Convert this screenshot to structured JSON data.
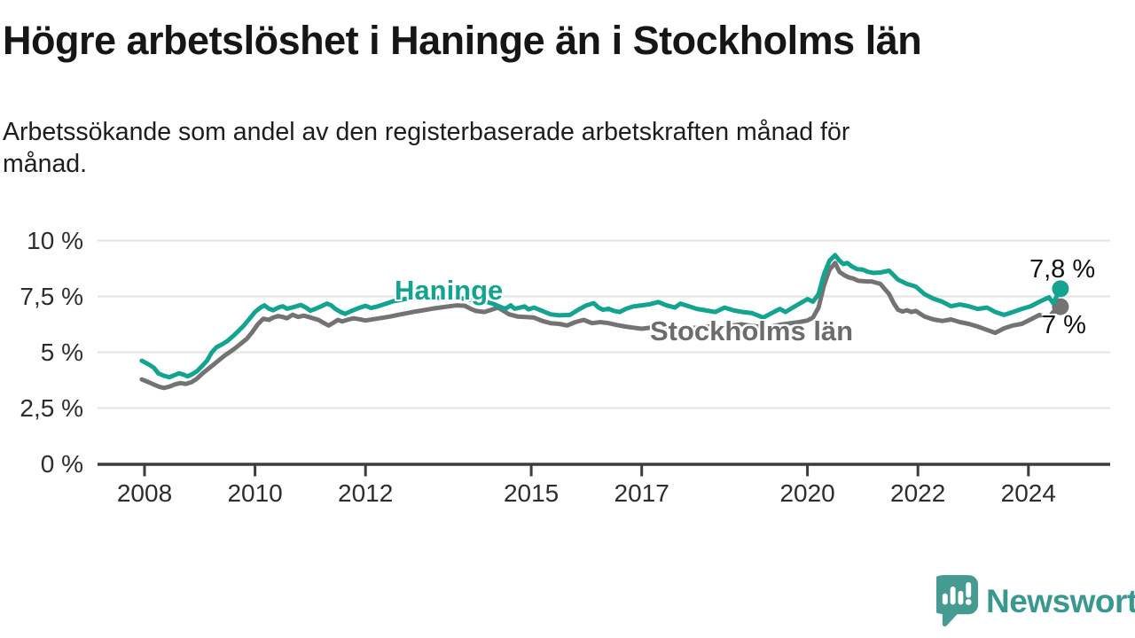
{
  "header": {
    "title": "Högre arbetslöshet i Haninge än i Stockholms län",
    "subtitle_line1": "Arbetssökande som andel av den registerbaserade arbetskraften månad för",
    "subtitle_line2": "månad."
  },
  "chart_data": {
    "type": "line",
    "unit": "%",
    "title": "Högre arbetslöshet i Haninge än i Stockholms län",
    "xlabel": "",
    "ylabel": "",
    "ylim": [
      0,
      10
    ],
    "x_range": [
      2007.95,
      2024.58
    ],
    "grid": true,
    "colors": {
      "grid": "#e3e3e3",
      "axis": "#3c3c3c",
      "text": "#1a1a1a",
      "tick_text": "#2d2d2d"
    },
    "y_ticks": [
      {
        "v": 0,
        "label": "0 %"
      },
      {
        "v": 2.5,
        "label": "2,5 %"
      },
      {
        "v": 5,
        "label": "5 %"
      },
      {
        "v": 7.5,
        "label": "7,5 %"
      },
      {
        "v": 10,
        "label": "10 %"
      }
    ],
    "x_ticks": [
      {
        "v": 2008,
        "label": "2008"
      },
      {
        "v": 2010,
        "label": "2010"
      },
      {
        "v": 2012,
        "label": "2012"
      },
      {
        "v": 2015,
        "label": "2015"
      },
      {
        "v": 2017,
        "label": "2017"
      },
      {
        "v": 2020,
        "label": "2020"
      },
      {
        "v": 2022,
        "label": "2022"
      },
      {
        "v": 2024,
        "label": "2024"
      }
    ],
    "series": [
      {
        "name": "Haninge",
        "slug": "haninge",
        "label": "Haninge",
        "color": "#13a391",
        "end_label": "7,8 %",
        "end_value": 7.8,
        "points": [
          [
            2007.95,
            4.62
          ],
          [
            2008.08,
            4.45
          ],
          [
            2008.17,
            4.3
          ],
          [
            2008.25,
            4.05
          ],
          [
            2008.35,
            3.95
          ],
          [
            2008.45,
            3.88
          ],
          [
            2008.55,
            3.98
          ],
          [
            2008.63,
            4.06
          ],
          [
            2008.7,
            4.0
          ],
          [
            2008.78,
            3.92
          ],
          [
            2008.85,
            4.0
          ],
          [
            2008.95,
            4.15
          ],
          [
            2009.05,
            4.4
          ],
          [
            2009.13,
            4.62
          ],
          [
            2009.22,
            5.0
          ],
          [
            2009.3,
            5.22
          ],
          [
            2009.4,
            5.35
          ],
          [
            2009.5,
            5.5
          ],
          [
            2009.6,
            5.72
          ],
          [
            2009.7,
            5.95
          ],
          [
            2009.8,
            6.2
          ],
          [
            2009.9,
            6.5
          ],
          [
            2010.0,
            6.8
          ],
          [
            2010.1,
            7.0
          ],
          [
            2010.17,
            7.1
          ],
          [
            2010.25,
            6.95
          ],
          [
            2010.33,
            6.88
          ],
          [
            2010.42,
            7.0
          ],
          [
            2010.5,
            7.06
          ],
          [
            2010.58,
            6.95
          ],
          [
            2010.67,
            7.0
          ],
          [
            2010.75,
            7.06
          ],
          [
            2010.83,
            7.12
          ],
          [
            2010.92,
            7.0
          ],
          [
            2011.0,
            6.86
          ],
          [
            2011.1,
            6.95
          ],
          [
            2011.2,
            7.06
          ],
          [
            2011.3,
            7.18
          ],
          [
            2011.38,
            7.1
          ],
          [
            2011.45,
            6.95
          ],
          [
            2011.55,
            6.8
          ],
          [
            2011.63,
            6.72
          ],
          [
            2011.72,
            6.82
          ],
          [
            2011.8,
            6.9
          ],
          [
            2011.9,
            7.0
          ],
          [
            2012.0,
            7.08
          ],
          [
            2012.1,
            6.98
          ],
          [
            2012.2,
            7.04
          ],
          [
            2012.3,
            7.12
          ],
          [
            2012.4,
            7.2
          ],
          [
            2012.5,
            7.28
          ],
          [
            2012.65,
            7.35
          ],
          [
            2012.8,
            7.42
          ],
          [
            2012.95,
            7.45
          ],
          [
            2013.1,
            7.5
          ],
          [
            2013.25,
            7.45
          ],
          [
            2013.4,
            7.42
          ],
          [
            2013.55,
            7.46
          ],
          [
            2013.7,
            7.42
          ],
          [
            2013.85,
            7.38
          ],
          [
            2014.0,
            7.32
          ],
          [
            2014.15,
            7.28
          ],
          [
            2014.3,
            7.18
          ],
          [
            2014.45,
            7.02
          ],
          [
            2014.53,
            6.94
          ],
          [
            2014.63,
            7.1
          ],
          [
            2014.7,
            6.95
          ],
          [
            2014.8,
            7.0
          ],
          [
            2014.88,
            7.05
          ],
          [
            2014.95,
            6.92
          ],
          [
            2015.05,
            7.0
          ],
          [
            2015.2,
            6.85
          ],
          [
            2015.35,
            6.7
          ],
          [
            2015.5,
            6.65
          ],
          [
            2015.7,
            6.67
          ],
          [
            2015.85,
            6.9
          ],
          [
            2016.0,
            7.1
          ],
          [
            2016.13,
            7.2
          ],
          [
            2016.22,
            7.0
          ],
          [
            2016.3,
            6.9
          ],
          [
            2016.4,
            6.95
          ],
          [
            2016.5,
            6.85
          ],
          [
            2016.6,
            6.8
          ],
          [
            2016.72,
            6.95
          ],
          [
            2016.85,
            7.05
          ],
          [
            2017.0,
            7.1
          ],
          [
            2017.15,
            7.15
          ],
          [
            2017.3,
            7.25
          ],
          [
            2017.45,
            7.1
          ],
          [
            2017.6,
            7.0
          ],
          [
            2017.7,
            7.18
          ],
          [
            2017.85,
            7.06
          ],
          [
            2018.0,
            6.94
          ],
          [
            2018.17,
            6.87
          ],
          [
            2018.33,
            6.8
          ],
          [
            2018.5,
            7.0
          ],
          [
            2018.67,
            6.87
          ],
          [
            2018.83,
            6.8
          ],
          [
            2019.0,
            6.75
          ],
          [
            2019.2,
            6.55
          ],
          [
            2019.35,
            6.75
          ],
          [
            2019.5,
            6.94
          ],
          [
            2019.6,
            6.8
          ],
          [
            2019.83,
            7.14
          ],
          [
            2020.0,
            7.38
          ],
          [
            2020.1,
            7.26
          ],
          [
            2020.2,
            7.6
          ],
          [
            2020.3,
            8.5
          ],
          [
            2020.4,
            9.1
          ],
          [
            2020.5,
            9.35
          ],
          [
            2020.58,
            9.1
          ],
          [
            2020.65,
            8.95
          ],
          [
            2020.72,
            9.0
          ],
          [
            2020.8,
            8.85
          ],
          [
            2020.9,
            8.72
          ],
          [
            2021.0,
            8.7
          ],
          [
            2021.1,
            8.6
          ],
          [
            2021.2,
            8.55
          ],
          [
            2021.32,
            8.57
          ],
          [
            2021.48,
            8.65
          ],
          [
            2021.64,
            8.25
          ],
          [
            2021.8,
            8.06
          ],
          [
            2021.96,
            7.94
          ],
          [
            2022.12,
            7.6
          ],
          [
            2022.28,
            7.4
          ],
          [
            2022.44,
            7.26
          ],
          [
            2022.6,
            7.06
          ],
          [
            2022.76,
            7.14
          ],
          [
            2022.92,
            7.06
          ],
          [
            2023.08,
            6.94
          ],
          [
            2023.25,
            7.0
          ],
          [
            2023.4,
            6.8
          ],
          [
            2023.56,
            6.67
          ],
          [
            2023.72,
            6.8
          ],
          [
            2023.88,
            6.94
          ],
          [
            2024.04,
            7.06
          ],
          [
            2024.2,
            7.26
          ],
          [
            2024.37,
            7.46
          ],
          [
            2024.45,
            7.2
          ],
          [
            2024.58,
            7.84
          ]
        ]
      },
      {
        "name": "Stockholms län",
        "slug": "stockholms-lan",
        "label": "Stockholms län",
        "color": "#737373",
        "label_color": "#6c6c6c",
        "end_label": "7 %",
        "end_value": 7.0,
        "points": [
          [
            2007.95,
            3.78
          ],
          [
            2008.08,
            3.65
          ],
          [
            2008.17,
            3.55
          ],
          [
            2008.27,
            3.45
          ],
          [
            2008.35,
            3.4
          ],
          [
            2008.45,
            3.46
          ],
          [
            2008.55,
            3.56
          ],
          [
            2008.65,
            3.62
          ],
          [
            2008.75,
            3.58
          ],
          [
            2008.85,
            3.66
          ],
          [
            2008.95,
            3.82
          ],
          [
            2009.05,
            4.05
          ],
          [
            2009.15,
            4.25
          ],
          [
            2009.25,
            4.45
          ],
          [
            2009.35,
            4.65
          ],
          [
            2009.45,
            4.85
          ],
          [
            2009.55,
            5.02
          ],
          [
            2009.65,
            5.2
          ],
          [
            2009.75,
            5.4
          ],
          [
            2009.85,
            5.6
          ],
          [
            2009.95,
            5.9
          ],
          [
            2010.05,
            6.25
          ],
          [
            2010.15,
            6.5
          ],
          [
            2010.25,
            6.45
          ],
          [
            2010.33,
            6.55
          ],
          [
            2010.42,
            6.62
          ],
          [
            2010.5,
            6.58
          ],
          [
            2010.58,
            6.52
          ],
          [
            2010.68,
            6.68
          ],
          [
            2010.78,
            6.58
          ],
          [
            2010.88,
            6.64
          ],
          [
            2010.97,
            6.58
          ],
          [
            2011.05,
            6.52
          ],
          [
            2011.15,
            6.45
          ],
          [
            2011.25,
            6.3
          ],
          [
            2011.33,
            6.2
          ],
          [
            2011.42,
            6.32
          ],
          [
            2011.5,
            6.45
          ],
          [
            2011.58,
            6.38
          ],
          [
            2011.67,
            6.45
          ],
          [
            2011.78,
            6.52
          ],
          [
            2011.88,
            6.48
          ],
          [
            2012.0,
            6.42
          ],
          [
            2012.15,
            6.48
          ],
          [
            2012.3,
            6.54
          ],
          [
            2012.45,
            6.6
          ],
          [
            2012.6,
            6.68
          ],
          [
            2012.75,
            6.75
          ],
          [
            2012.9,
            6.82
          ],
          [
            2013.05,
            6.88
          ],
          [
            2013.2,
            6.95
          ],
          [
            2013.35,
            7.0
          ],
          [
            2013.5,
            7.05
          ],
          [
            2013.65,
            7.1
          ],
          [
            2013.8,
            7.08
          ],
          [
            2013.9,
            6.95
          ],
          [
            2014.0,
            6.85
          ],
          [
            2014.15,
            6.8
          ],
          [
            2014.4,
            7.0
          ],
          [
            2014.6,
            6.7
          ],
          [
            2014.75,
            6.6
          ],
          [
            2014.9,
            6.58
          ],
          [
            2015.05,
            6.55
          ],
          [
            2015.2,
            6.4
          ],
          [
            2015.35,
            6.3
          ],
          [
            2015.5,
            6.27
          ],
          [
            2015.65,
            6.2
          ],
          [
            2015.8,
            6.35
          ],
          [
            2015.95,
            6.45
          ],
          [
            2016.1,
            6.3
          ],
          [
            2016.25,
            6.35
          ],
          [
            2016.4,
            6.3
          ],
          [
            2016.55,
            6.22
          ],
          [
            2016.7,
            6.15
          ],
          [
            2016.85,
            6.1
          ],
          [
            2017.0,
            6.05
          ],
          [
            2017.15,
            6.1
          ],
          [
            2017.3,
            6.05
          ],
          [
            2017.45,
            6.0
          ],
          [
            2017.6,
            6.05
          ],
          [
            2017.75,
            6.1
          ],
          [
            2017.9,
            6.08
          ],
          [
            2018.05,
            6.12
          ],
          [
            2018.2,
            6.15
          ],
          [
            2018.35,
            6.1
          ],
          [
            2018.5,
            6.15
          ],
          [
            2018.65,
            6.2
          ],
          [
            2018.8,
            6.25
          ],
          [
            2018.95,
            6.2
          ],
          [
            2019.1,
            6.15
          ],
          [
            2019.25,
            6.1
          ],
          [
            2019.4,
            6.18
          ],
          [
            2019.55,
            6.25
          ],
          [
            2019.7,
            6.3
          ],
          [
            2019.85,
            6.35
          ],
          [
            2020.0,
            6.42
          ],
          [
            2020.1,
            6.55
          ],
          [
            2020.2,
            7.0
          ],
          [
            2020.3,
            8.0
          ],
          [
            2020.4,
            8.7
          ],
          [
            2020.5,
            9.0
          ],
          [
            2020.58,
            8.6
          ],
          [
            2020.67,
            8.45
          ],
          [
            2020.75,
            8.35
          ],
          [
            2020.83,
            8.3
          ],
          [
            2020.92,
            8.2
          ],
          [
            2021.08,
            8.17
          ],
          [
            2021.16,
            8.17
          ],
          [
            2021.32,
            8.06
          ],
          [
            2021.48,
            7.6
          ],
          [
            2021.56,
            7.2
          ],
          [
            2021.64,
            6.9
          ],
          [
            2021.72,
            6.82
          ],
          [
            2021.8,
            6.88
          ],
          [
            2021.88,
            6.8
          ],
          [
            2021.96,
            6.85
          ],
          [
            2022.12,
            6.6
          ],
          [
            2022.28,
            6.47
          ],
          [
            2022.44,
            6.4
          ],
          [
            2022.6,
            6.47
          ],
          [
            2022.76,
            6.35
          ],
          [
            2022.92,
            6.27
          ],
          [
            2023.08,
            6.15
          ],
          [
            2023.25,
            6.0
          ],
          [
            2023.4,
            5.87
          ],
          [
            2023.56,
            6.07
          ],
          [
            2023.72,
            6.2
          ],
          [
            2023.88,
            6.27
          ],
          [
            2024.04,
            6.47
          ],
          [
            2024.2,
            6.67
          ],
          [
            2024.37,
            6.55
          ],
          [
            2024.45,
            6.8
          ],
          [
            2024.58,
            7.04
          ]
        ]
      }
    ]
  },
  "footer": {
    "brand": "Newsworthy",
    "brand_color": "#3a998f",
    "icon_color": "#459a91"
  }
}
